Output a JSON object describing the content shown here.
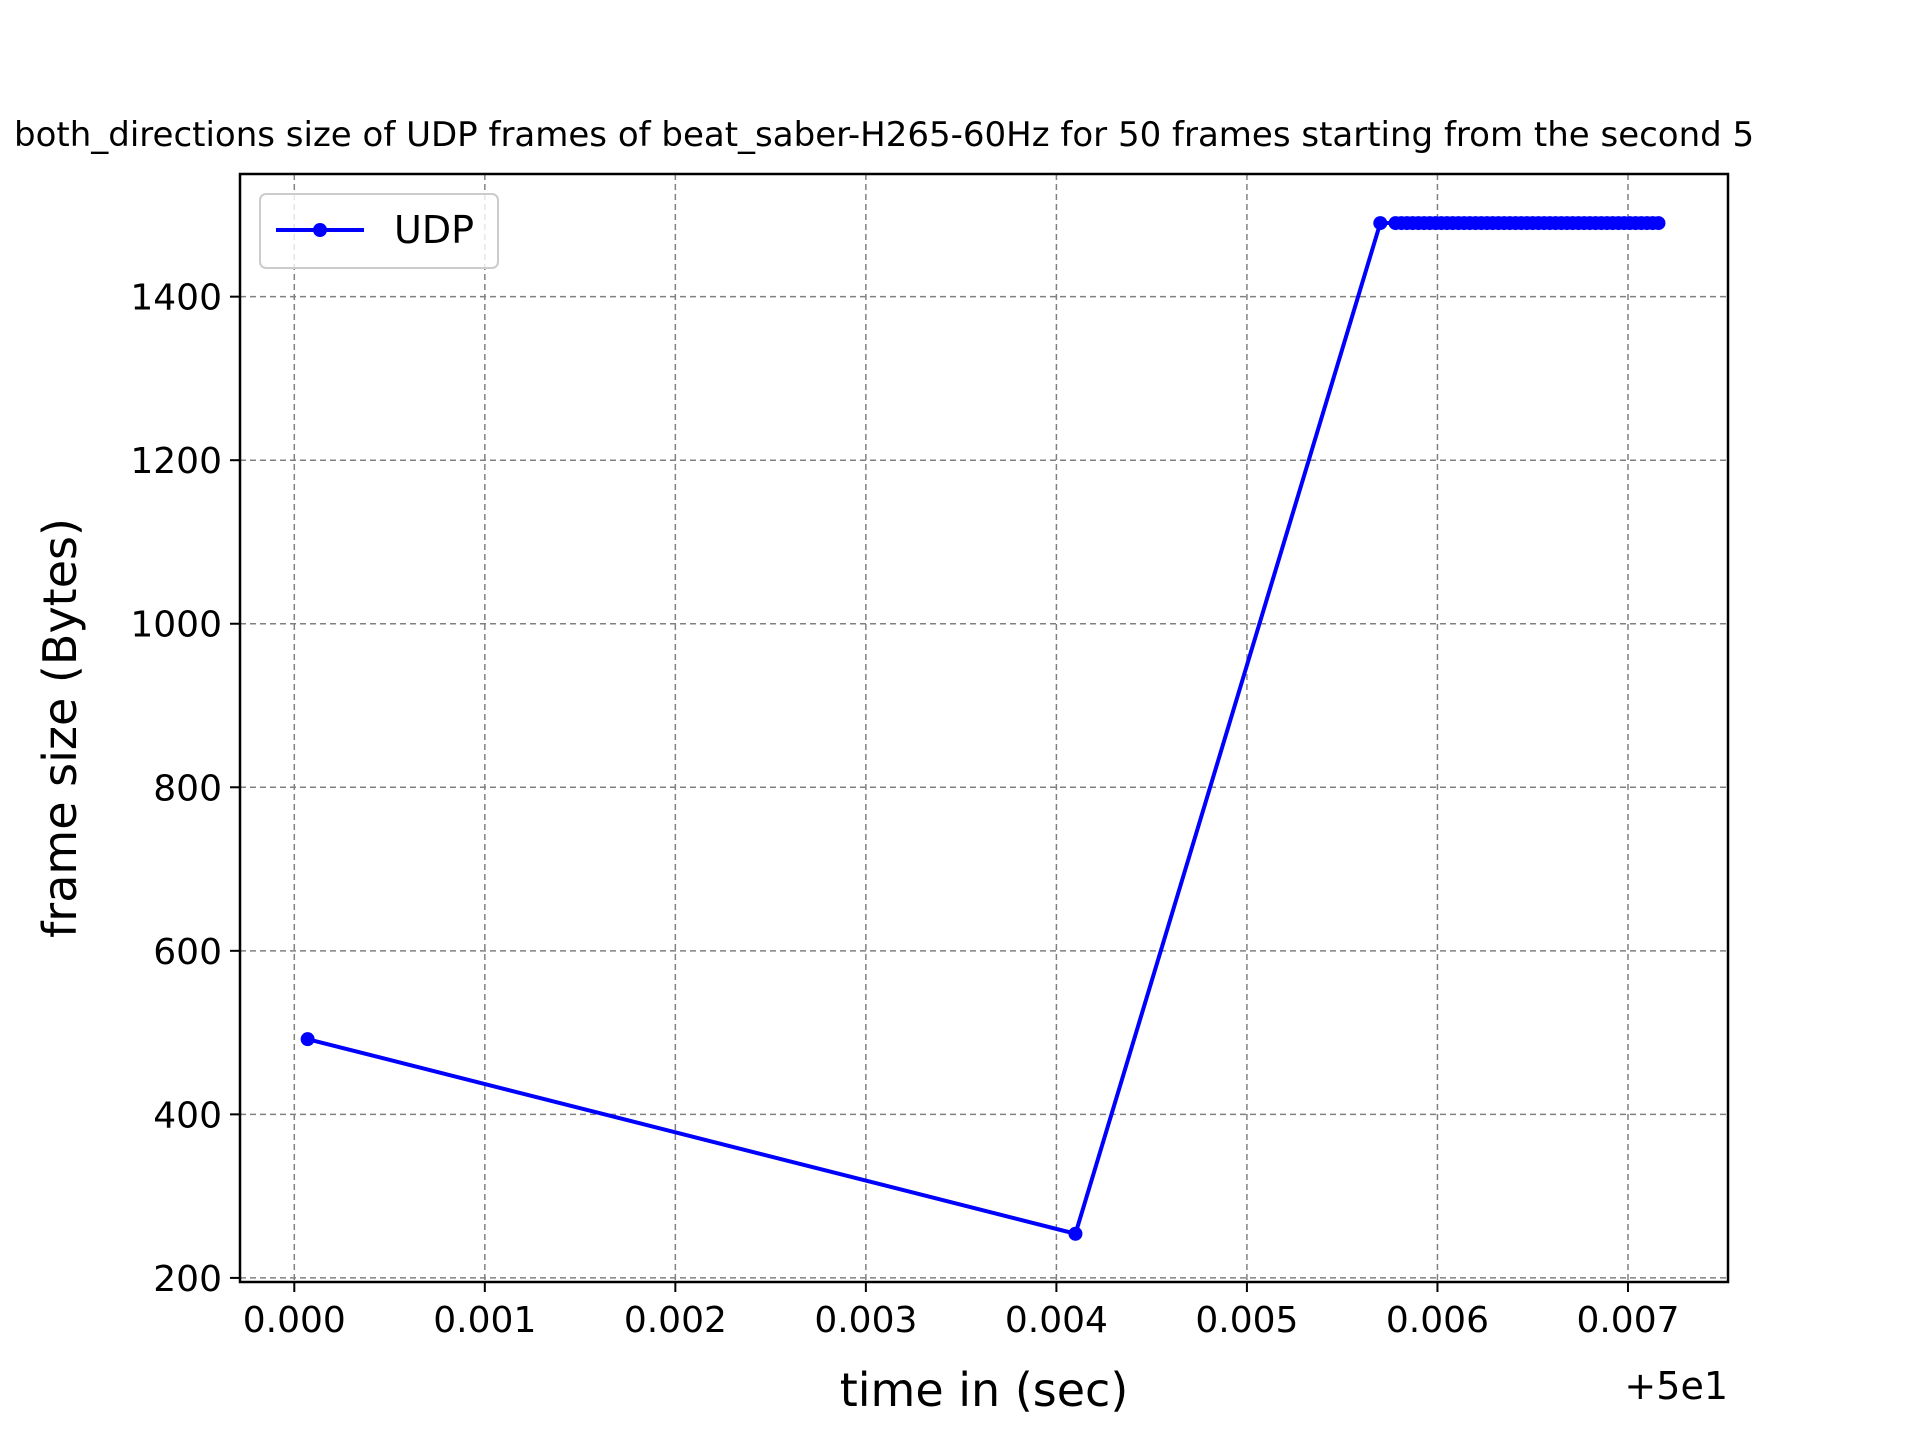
{
  "chart_data": {
    "type": "line",
    "title": "both_directions size of UDP frames of beat_saber-H265-60Hz for 50 frames starting from the second 5",
    "xlabel": "time in (sec)",
    "ylabel": "frame size (Bytes)",
    "x_offset_label": "+5e1",
    "xlim": [
      -0.000285,
      0.007525
    ],
    "ylim": [
      195,
      1550
    ],
    "xticks": [
      0.0,
      0.001,
      0.002,
      0.003,
      0.004,
      0.005,
      0.006,
      0.007
    ],
    "xtick_labels": [
      "0.000",
      "0.001",
      "0.002",
      "0.003",
      "0.004",
      "0.005",
      "0.006",
      "0.007"
    ],
    "yticks": [
      200,
      400,
      600,
      800,
      1000,
      1200,
      1400
    ],
    "ytick_labels": [
      "200",
      "400",
      "600",
      "800",
      "1000",
      "1200",
      "1400"
    ],
    "grid": true,
    "legend_position": "upper-left",
    "series": [
      {
        "name": "UDP",
        "color": "#0000ff",
        "marker": "dot",
        "x": [
          7e-05,
          0.0041,
          0.0057,
          0.00578,
          0.00581,
          0.00584,
          0.00587,
          0.0059,
          0.00593,
          0.00596,
          0.00599,
          0.00602,
          0.00605,
          0.00608,
          0.00611,
          0.00614,
          0.00617,
          0.0062,
          0.00623,
          0.00626,
          0.00629,
          0.00632,
          0.00635,
          0.00638,
          0.00641,
          0.00644,
          0.00647,
          0.0065,
          0.00653,
          0.00656,
          0.00659,
          0.00662,
          0.00665,
          0.00668,
          0.00671,
          0.00674,
          0.00677,
          0.0068,
          0.00683,
          0.00686,
          0.00689,
          0.00692,
          0.00695,
          0.00698,
          0.00701,
          0.00704,
          0.00707,
          0.0071,
          0.00713,
          0.00716
        ],
        "y": [
          492,
          254,
          1490,
          1490,
          1490,
          1490,
          1490,
          1490,
          1490,
          1490,
          1490,
          1490,
          1490,
          1490,
          1490,
          1490,
          1490,
          1490,
          1490,
          1490,
          1490,
          1490,
          1490,
          1490,
          1490,
          1490,
          1490,
          1490,
          1490,
          1490,
          1490,
          1490,
          1490,
          1490,
          1490,
          1490,
          1490,
          1490,
          1490,
          1490,
          1490,
          1490,
          1490,
          1490,
          1490,
          1490,
          1490,
          1490,
          1490,
          1490
        ]
      }
    ]
  }
}
